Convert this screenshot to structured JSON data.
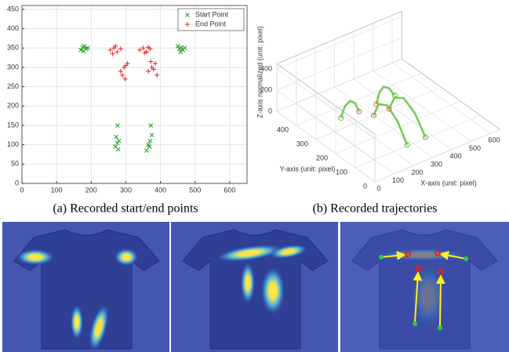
{
  "chart_data": [
    {
      "type": "scatter",
      "legend": "upper right",
      "xlim": [
        0,
        650
      ],
      "ylim": [
        0,
        460
      ],
      "xticks": [
        0,
        100,
        200,
        300,
        400,
        500,
        600
      ],
      "yticks": [
        0,
        50,
        100,
        150,
        200,
        250,
        300,
        350,
        400,
        450
      ],
      "grid": true,
      "series": [
        {
          "name": "Start Point",
          "color": "#1a9e1a",
          "marker": "x",
          "x": [
            170,
            175,
            180,
            185,
            190,
            178,
            450,
            455,
            460,
            465,
            470,
            458,
            270,
            275,
            280,
            272,
            278,
            276,
            360,
            365,
            370,
            375,
            368,
            372
          ],
          "values": [
            345,
            352,
            355,
            348,
            350,
            342,
            355,
            348,
            352,
            345,
            350,
            340,
            95,
            105,
            110,
            120,
            88,
            150,
            85,
            100,
            110,
            125,
            95,
            150
          ]
        },
        {
          "name": "End Point",
          "color": "#e8201a",
          "marker": "+",
          "x": [
            255,
            265,
            275,
            285,
            262,
            270,
            340,
            350,
            360,
            370,
            355,
            365,
            285,
            295,
            305,
            290,
            300,
            298,
            365,
            375,
            385,
            390,
            380,
            372
          ],
          "values": [
            345,
            350,
            340,
            348,
            335,
            355,
            345,
            350,
            340,
            348,
            338,
            352,
            290,
            300,
            310,
            280,
            305,
            270,
            290,
            300,
            310,
            280,
            295,
            315
          ]
        }
      ]
    },
    {
      "type": "line3d",
      "xlabel": "X-axis (unit: pixel)",
      "ylabel": "Y-axis (unit: pixel)",
      "zlabel": "Z-axis normalized (unit: pixel)",
      "xlim": [
        0,
        650
      ],
      "ylim": [
        0,
        500
      ],
      "zlim": [
        0,
        450
      ],
      "xticks": [
        0,
        100,
        200,
        300,
        400,
        500,
        600
      ],
      "yticks": [
        0,
        100,
        200,
        300,
        400
      ],
      "zticks": [
        0,
        200,
        400
      ],
      "grid": true,
      "color": "#5cbf3a",
      "end_color": "#e86a2a",
      "series": [
        {
          "x": [
            180,
            200,
            225,
            250,
            270
          ],
          "y": [
            350,
            350,
            348,
            346,
            345
          ],
          "z": [
            0,
            90,
            130,
            90,
            0
          ]
        },
        {
          "x": [
            460,
            430,
            400,
            375,
            360
          ],
          "y": [
            350,
            349,
            348,
            346,
            345
          ],
          "z": [
            0,
            90,
            130,
            90,
            0
          ]
        },
        {
          "x": [
            275,
            280,
            288,
            295,
            300
          ],
          "y": [
            105,
            160,
            220,
            270,
            300
          ],
          "z": [
            0,
            150,
            210,
            150,
            0
          ]
        },
        {
          "x": [
            370,
            372,
            375,
            378,
            380
          ],
          "y": [
            105,
            160,
            220,
            270,
            300
          ],
          "z": [
            0,
            150,
            210,
            150,
            0
          ]
        }
      ]
    }
  ],
  "captions": [
    "(a) Recorded start/end points",
    "(b) Recorded trajectories"
  ]
}
